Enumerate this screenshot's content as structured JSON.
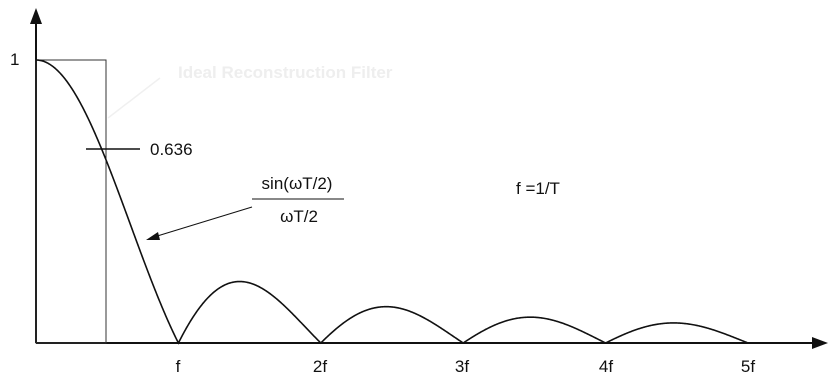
{
  "diagram": {
    "y_tick_label": "1",
    "x_tick_labels": [
      "f",
      "2f",
      "3f",
      "4f",
      "5f"
    ],
    "value_annotation": "0.636",
    "formula": {
      "numerator": "sin(ωT/2)",
      "denominator": "ωT/2"
    },
    "relation": "f =1/T",
    "faint_label": "Ideal Reconstruction Filter",
    "colors": {
      "curve": "#111111",
      "filter": "#333333",
      "background": "#ffffff"
    }
  }
}
